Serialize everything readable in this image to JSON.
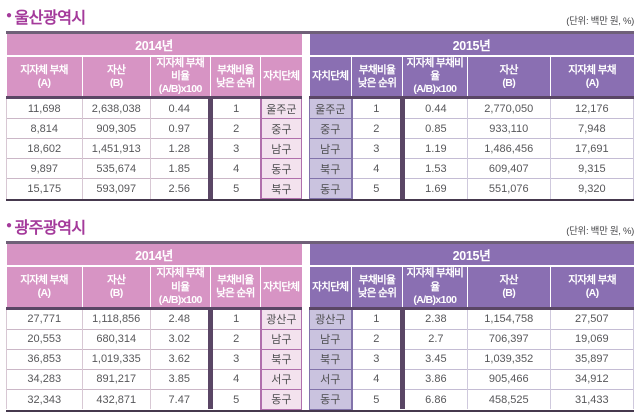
{
  "bullet": "●",
  "unit_label": "(단위: 백만 원, %)",
  "colors": {
    "title_color": "#a43a9b",
    "y2014": "#d794c4",
    "y2015": "#8a6fb2",
    "top_rule": "#6f6078",
    "mid_rule": "#5a4665",
    "bottom_rule": "#46394e",
    "left_district_bg": "#f3e2ee",
    "left_district_bd": "#b06fac",
    "right_district_bg": "#cac3df",
    "right_district_bd": "#8273aa"
  },
  "columns_2014": [
    "지자체 부채\n(A)",
    "자산\n(B)",
    "지자체 부채비율\n(A/B)x100",
    "부채비율\n낮은 순위",
    "자치단체"
  ],
  "columns_2015": [
    "자치단체",
    "부채비율\n낮은 순위",
    "지자체 부채비율\n(A/B)x100",
    "자산\n(B)",
    "지자체 부채\n(A)"
  ],
  "sections": [
    {
      "title": "울산광역시",
      "left_year": "2014년",
      "right_year": "2015년",
      "left_rows": [
        [
          "11,698",
          "2,638,038",
          "0.44",
          "1",
          "울주군"
        ],
        [
          "8,814",
          "909,305",
          "0.97",
          "2",
          "중구"
        ],
        [
          "18,602",
          "1,451,913",
          "1.28",
          "3",
          "남구"
        ],
        [
          "9,897",
          "535,674",
          "1.85",
          "4",
          "동구"
        ],
        [
          "15,175",
          "593,097",
          "2.56",
          "5",
          "북구"
        ]
      ],
      "right_rows": [
        [
          "울주군",
          "1",
          "0.44",
          "2,770,050",
          "12,176"
        ],
        [
          "중구",
          "2",
          "0.85",
          "933,110",
          "7,948"
        ],
        [
          "남구",
          "3",
          "1.19",
          "1,486,456",
          "17,691"
        ],
        [
          "북구",
          "4",
          "1.53",
          "609,407",
          "9,315"
        ],
        [
          "동구",
          "5",
          "1.69",
          "551,076",
          "9,320"
        ]
      ]
    },
    {
      "title": "광주광역시",
      "left_year": "2014년",
      "right_year": "2015년",
      "left_rows": [
        [
          "27,771",
          "1,118,856",
          "2.48",
          "1",
          "광산구"
        ],
        [
          "20,553",
          "680,314",
          "3.02",
          "2",
          "남구"
        ],
        [
          "36,853",
          "1,019,335",
          "3.62",
          "3",
          "북구"
        ],
        [
          "34,283",
          "891,217",
          "3.85",
          "4",
          "서구"
        ],
        [
          "32,343",
          "432,871",
          "7.47",
          "5",
          "동구"
        ]
      ],
      "right_rows": [
        [
          "광산구",
          "1",
          "2.38",
          "1,154,758",
          "27,507"
        ],
        [
          "남구",
          "2",
          "2.7",
          "706,397",
          "19,069"
        ],
        [
          "북구",
          "3",
          "3.45",
          "1,039,352",
          "35,897"
        ],
        [
          "서구",
          "4",
          "3.86",
          "905,466",
          "34,912"
        ],
        [
          "동구",
          "5",
          "6.86",
          "458,525",
          "31,433"
        ]
      ]
    }
  ]
}
